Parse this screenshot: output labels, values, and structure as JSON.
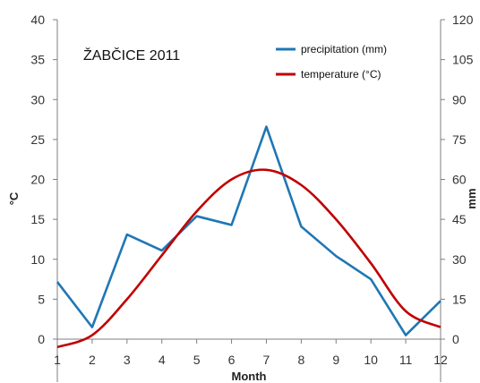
{
  "chart_data": {
    "type": "line",
    "title": "ŽABČICE  2011",
    "xlabel": "Month",
    "ylabel_left": "°C",
    "ylabel_right": "mm",
    "x": [
      1,
      2,
      3,
      4,
      5,
      6,
      7,
      8,
      9,
      10,
      11,
      12
    ],
    "ylim_left": [
      0,
      40
    ],
    "yticks_left": [
      0,
      5,
      10,
      15,
      20,
      25,
      30,
      35,
      40
    ],
    "ylim_right": [
      0,
      120
    ],
    "yticks_right": [
      0,
      15,
      30,
      45,
      60,
      75,
      90,
      105,
      120
    ],
    "grid": false,
    "legend_position": "top-right",
    "series": [
      {
        "name": "precipitation (mm)",
        "axis": "right",
        "color": "#1f77b4",
        "values": [
          21.5,
          4.5,
          39.3,
          33.3,
          46.2,
          42.9,
          79.8,
          42.3,
          31.2,
          22.5,
          1.5,
          14.4
        ]
      },
      {
        "name": "temperature (°C)",
        "axis": "left",
        "color": "#c00000",
        "smooth": true,
        "values": [
          -1.0,
          0.5,
          5.0,
          10.5,
          16.0,
          20.0,
          21.2,
          19.3,
          15.0,
          9.5,
          3.5,
          1.5
        ]
      }
    ]
  }
}
